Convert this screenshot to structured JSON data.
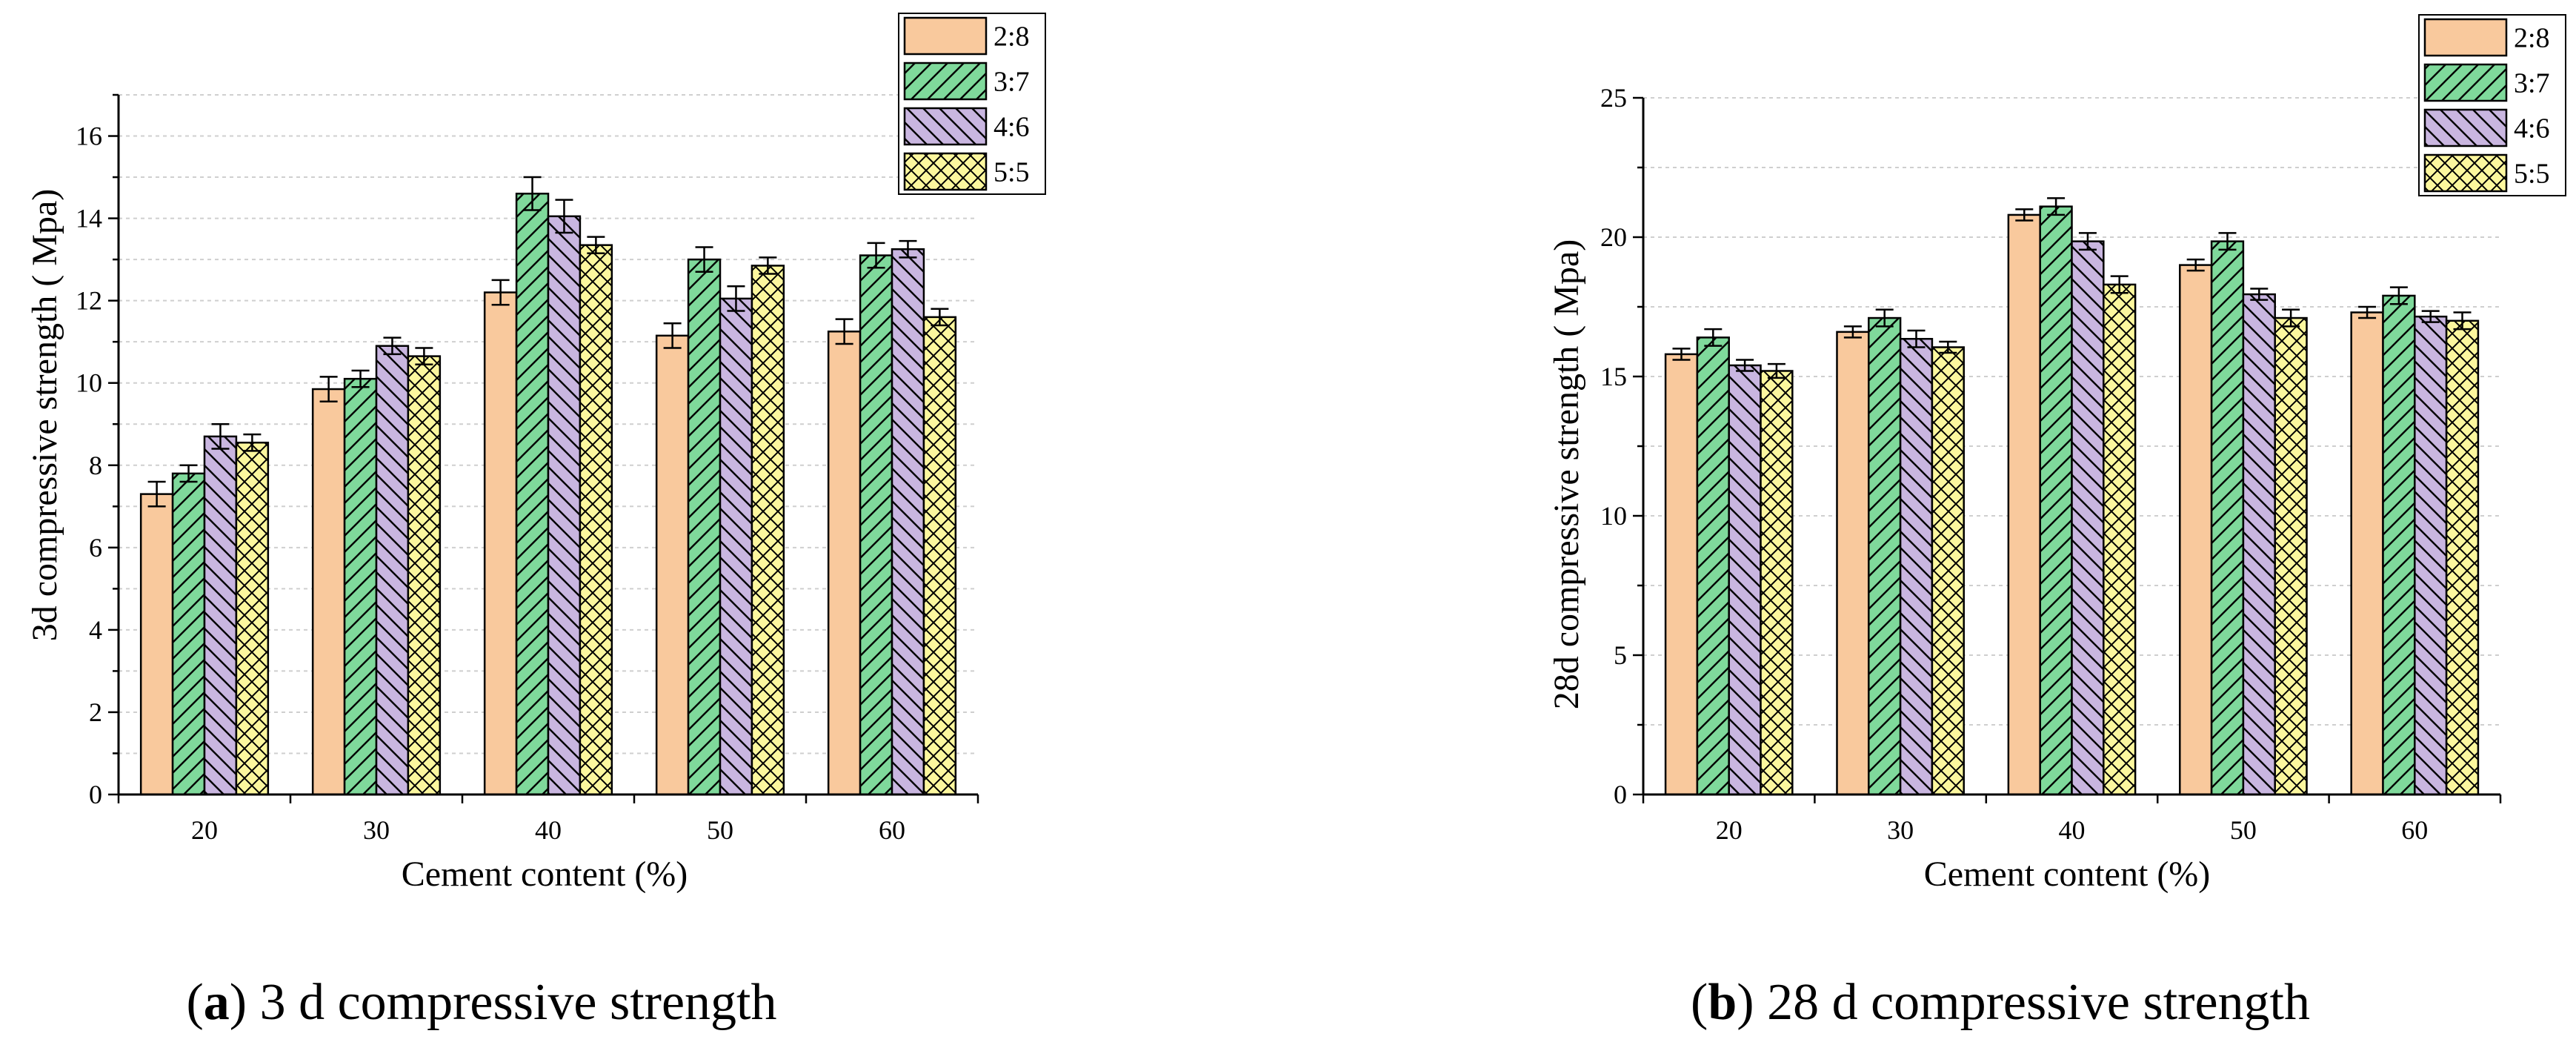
{
  "colors": {
    "2:8": "#f9c99d",
    "3:7": "#7fd99b",
    "4:6": "#c9b6e0",
    "5:5": "#fcf79e",
    "grid": "#cfcfcf",
    "axis": "#000000"
  },
  "chart_data": [
    {
      "type": "bar",
      "panel": "a",
      "caption_letter": "a",
      "caption_text": " 3 d compressive strength",
      "xlabel": "Cement content (%)",
      "ylabel": "3d compressive strength ( Mpa)",
      "categories": [
        "20",
        "30",
        "40",
        "50",
        "60"
      ],
      "ylim": [
        0,
        17
      ],
      "yticks": [
        0,
        2,
        4,
        6,
        8,
        10,
        12,
        14,
        16
      ],
      "grid": true,
      "legend_position": "top-right",
      "series": [
        {
          "name": "2:8",
          "pattern": "solid",
          "values": [
            7.3,
            9.85,
            12.2,
            11.15,
            11.25
          ],
          "errors": [
            0.3,
            0.3,
            0.3,
            0.3,
            0.3
          ]
        },
        {
          "name": "3:7",
          "pattern": "forward-diagonal",
          "values": [
            7.8,
            10.1,
            14.6,
            13.0,
            13.1
          ],
          "errors": [
            0.2,
            0.2,
            0.4,
            0.3,
            0.3
          ]
        },
        {
          "name": "4:6",
          "pattern": "back-diagonal",
          "values": [
            8.7,
            10.9,
            14.05,
            12.05,
            13.25
          ],
          "errors": [
            0.3,
            0.2,
            0.4,
            0.3,
            0.2
          ]
        },
        {
          "name": "5:5",
          "pattern": "crosshatch",
          "values": [
            8.55,
            10.65,
            13.35,
            12.85,
            11.6
          ],
          "errors": [
            0.2,
            0.2,
            0.2,
            0.2,
            0.2
          ]
        }
      ]
    },
    {
      "type": "bar",
      "panel": "b",
      "caption_letter": "b",
      "caption_text": " 28 d compressive strength",
      "xlabel": "Cement content (%)",
      "ylabel": "28d compressive strength ( Mpa)",
      "categories": [
        "20",
        "30",
        "40",
        "50",
        "60"
      ],
      "ylim": [
        0,
        25
      ],
      "yticks": [
        0,
        5,
        10,
        15,
        20,
        25
      ],
      "grid": true,
      "legend_position": "top-right",
      "series": [
        {
          "name": "2:8",
          "pattern": "solid",
          "values": [
            15.8,
            16.6,
            20.8,
            19.0,
            17.3
          ],
          "errors": [
            0.2,
            0.2,
            0.2,
            0.2,
            0.2
          ]
        },
        {
          "name": "3:7",
          "pattern": "forward-diagonal",
          "values": [
            16.4,
            17.1,
            21.1,
            19.85,
            17.9
          ],
          "errors": [
            0.3,
            0.3,
            0.3,
            0.3,
            0.3
          ]
        },
        {
          "name": "4:6",
          "pattern": "back-diagonal",
          "values": [
            15.4,
            16.35,
            19.85,
            17.95,
            17.15
          ],
          "errors": [
            0.2,
            0.3,
            0.3,
            0.2,
            0.2
          ]
        },
        {
          "name": "5:5",
          "pattern": "crosshatch",
          "values": [
            15.2,
            16.05,
            18.3,
            17.1,
            17.0
          ],
          "errors": [
            0.25,
            0.2,
            0.3,
            0.3,
            0.3
          ]
        }
      ]
    }
  ]
}
